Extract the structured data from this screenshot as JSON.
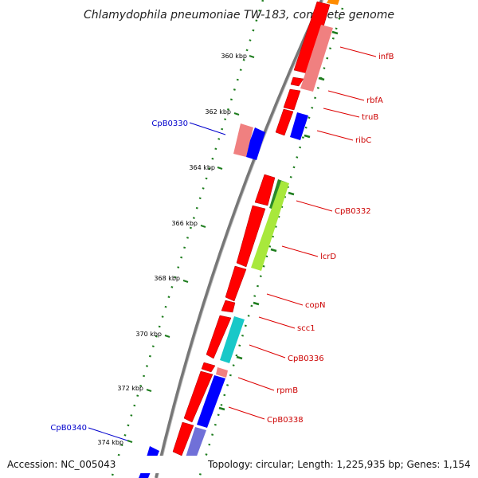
{
  "title": "Chlamydophila pneumoniae TW-183, complete genome",
  "footer": {
    "accession": "Accession: NC_005043",
    "topology": "Topology: circular; Length: 1,225,935 bp; Genes: 1,154"
  },
  "colors": {
    "forward_label": "#cc0000",
    "reverse_label": "#0000cc",
    "backbone": "#777777",
    "tick": "#1e7d1e",
    "forward_cds": "#ff0000",
    "forward_cds_light": "#f08080",
    "reverse_cds": "#0000ff",
    "reverse_cds_light": "#7070d8",
    "cog_lime": "#a8e83c",
    "cog_green": "#2a8a2a",
    "cog_cyan": "#18c8c8",
    "cog_orange": "#ff8c00"
  },
  "scale": {
    "ticks": [
      {
        "label": "360 kbp"
      },
      {
        "label": "362 kbp"
      },
      {
        "label": "364 kbp"
      },
      {
        "label": "366 kbp"
      },
      {
        "label": "368 kbp"
      },
      {
        "label": "370 kbp"
      },
      {
        "label": "372 kbp"
      },
      {
        "label": "374 kbp"
      }
    ]
  },
  "gene_labels": [
    {
      "text": "infB",
      "strand": "forward"
    },
    {
      "text": "rbfA",
      "strand": "forward"
    },
    {
      "text": "truB",
      "strand": "forward"
    },
    {
      "text": "ribC",
      "strand": "forward"
    },
    {
      "text": "CpB0332",
      "strand": "forward"
    },
    {
      "text": "lcrD",
      "strand": "forward"
    },
    {
      "text": "copN",
      "strand": "forward"
    },
    {
      "text": "scc1",
      "strand": "forward"
    },
    {
      "text": "CpB0336",
      "strand": "forward"
    },
    {
      "text": "rpmB",
      "strand": "forward"
    },
    {
      "text": "CpB0338",
      "strand": "forward"
    },
    {
      "text": "CpB0330",
      "strand": "reverse"
    },
    {
      "text": "CpB0340",
      "strand": "reverse"
    }
  ]
}
